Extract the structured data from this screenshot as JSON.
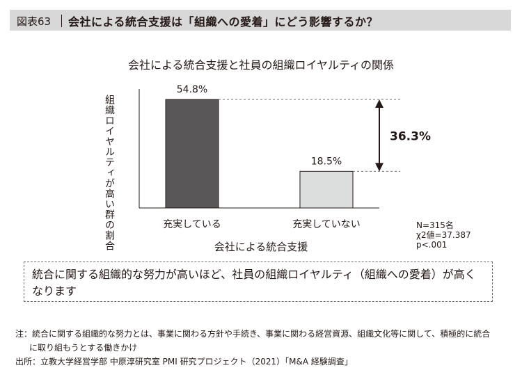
{
  "header": {
    "figure_label": "図表63",
    "title": "会社による統合支援は「組織への愛着」にどう影響するか？"
  },
  "chart_data": {
    "type": "bar",
    "title": "会社による統合支援と社員の組織ロイヤルティの関係",
    "categories": [
      "充実している",
      "充実していない"
    ],
    "values": [
      54.8,
      18.5
    ],
    "value_labels": [
      "54.8%",
      "18.5%"
    ],
    "bar_colors": [
      "#595757",
      "#dcdddd"
    ],
    "xlabel": "会社による統合支援",
    "ylabel": "組織ロイヤルティが高い群の割合",
    "ylim": [
      0,
      70
    ],
    "difference": {
      "value": 36.3,
      "label": "36.3%"
    },
    "stats": [
      "N=315名",
      "χ2値=37.387",
      "p<.001"
    ],
    "grid": false
  },
  "summary": "統合に関する組織的な努力が高いほど、社員の組織ロイヤルティ（組織への愛着）が高くなります",
  "note": {
    "line1": "注：統合に関する組織的な努力とは、事業に関わる方針や手続き、事業に関わる経営資源、組織文化等に関して、積極的に統合",
    "line2": "に取り組もうとする働きかけ",
    "source": "出所：立教大学経営学部 中原淳研究室 PMI 研究プロジェクト（2021）「M&A 経験調査」"
  }
}
